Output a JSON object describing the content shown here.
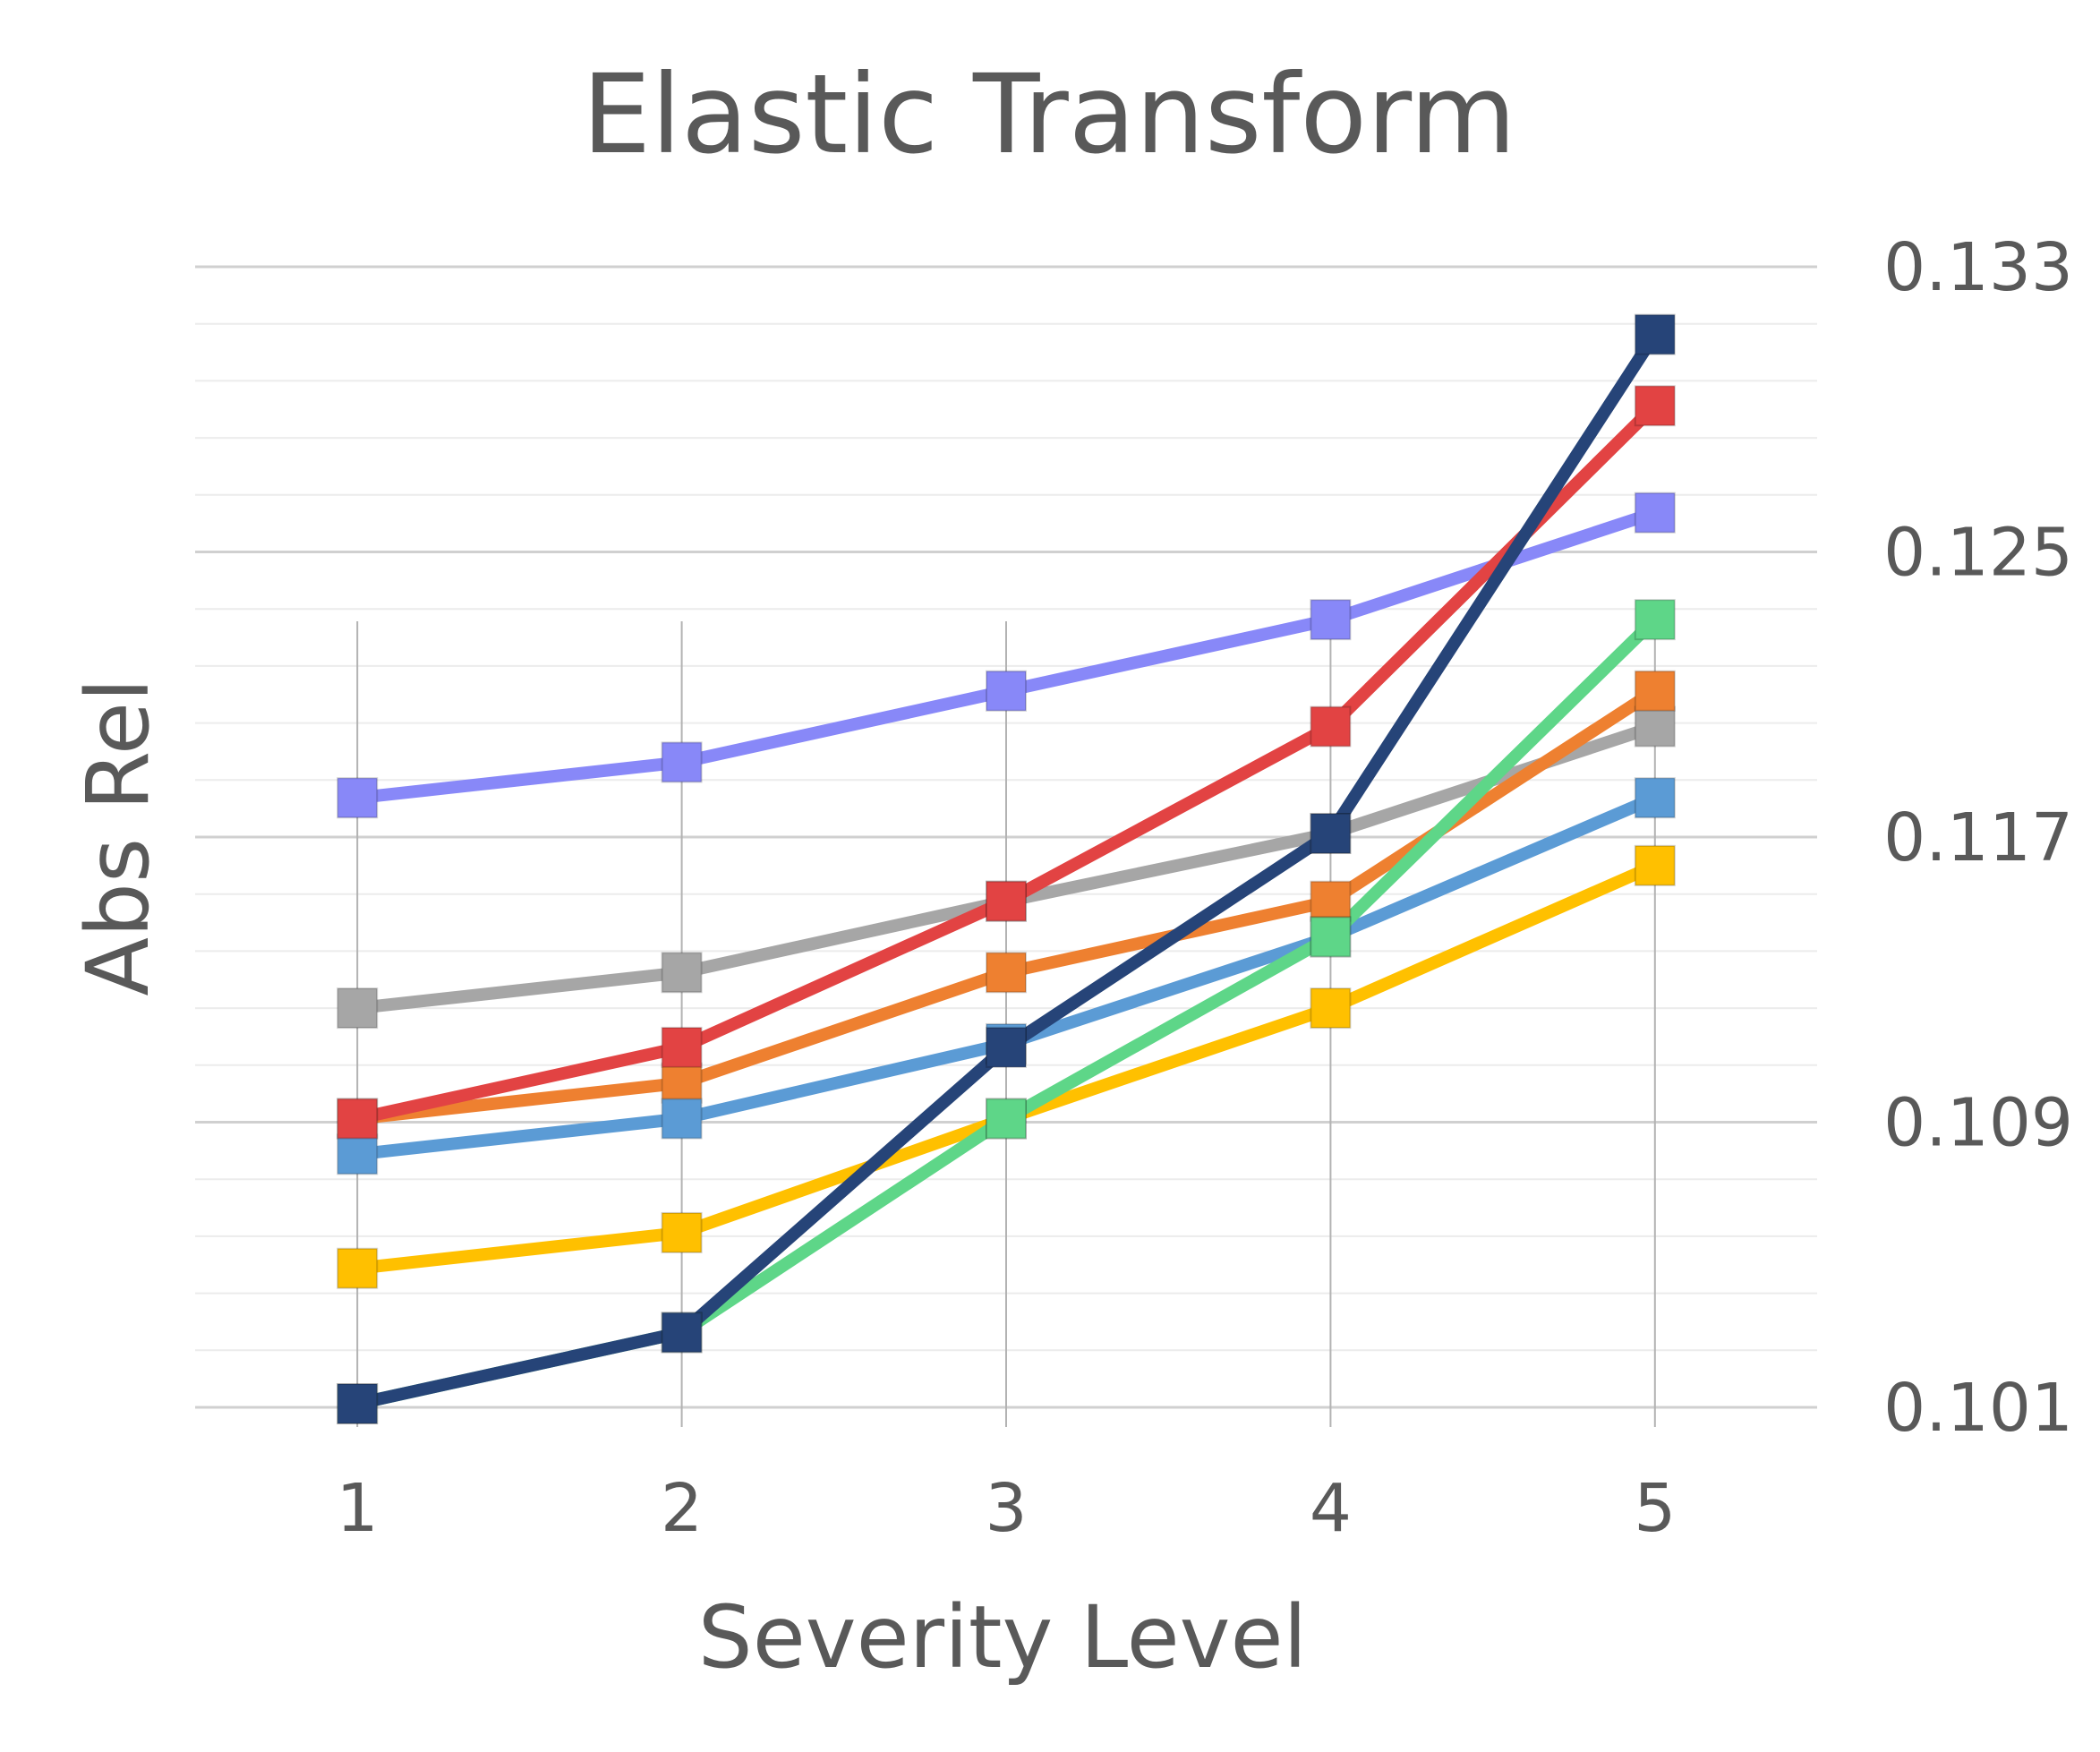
{
  "chart_data": {
    "type": "line",
    "title": "Elastic Transform",
    "xlabel": "Severity Level",
    "ylabel": "Abs Rel",
    "x": [
      1,
      2,
      3,
      4,
      5
    ],
    "x_tick_labels": [
      "1",
      "2",
      "3",
      "4",
      "5"
    ],
    "y_tick_values": [
      0.101,
      0.109,
      0.117,
      0.125,
      0.133
    ],
    "y_tick_labels": [
      "0.101",
      "0.109",
      "0.117",
      "0.125",
      "0.133"
    ],
    "ylim": [
      0.101,
      0.133
    ],
    "y_axis_side": "right",
    "major_grid_step": 0.008,
    "minor_grid_step": 0.0016,
    "legend": "none",
    "series": [
      {
        "color": "#8888f8",
        "values": [
          0.1181,
          0.1191,
          0.1211,
          0.1231,
          0.1261
        ]
      },
      {
        "color": "#a6a6a6",
        "values": [
          0.1122,
          0.1132,
          0.1152,
          0.1171,
          0.1201
        ]
      },
      {
        "color": "#ee8030",
        "values": [
          0.1091,
          0.1101,
          0.1132,
          0.1152,
          0.1211
        ]
      },
      {
        "color": "#5b9bd5",
        "values": [
          0.1081,
          0.1091,
          0.1112,
          0.1142,
          0.1181
        ]
      },
      {
        "color": "#e24343",
        "values": [
          0.1091,
          0.1111,
          0.1152,
          0.1201,
          0.1291
        ]
      },
      {
        "color": "#ffc000",
        "values": [
          0.1049,
          0.1059,
          0.1091,
          0.1122,
          0.1162
        ]
      },
      {
        "color": "#5ed688",
        "values": [
          0.1011,
          0.1031,
          0.1091,
          0.1142,
          0.1231
        ]
      },
      {
        "color": "#264478",
        "values": [
          0.1011,
          0.1031,
          0.1111,
          0.1171,
          0.1311
        ]
      }
    ]
  }
}
